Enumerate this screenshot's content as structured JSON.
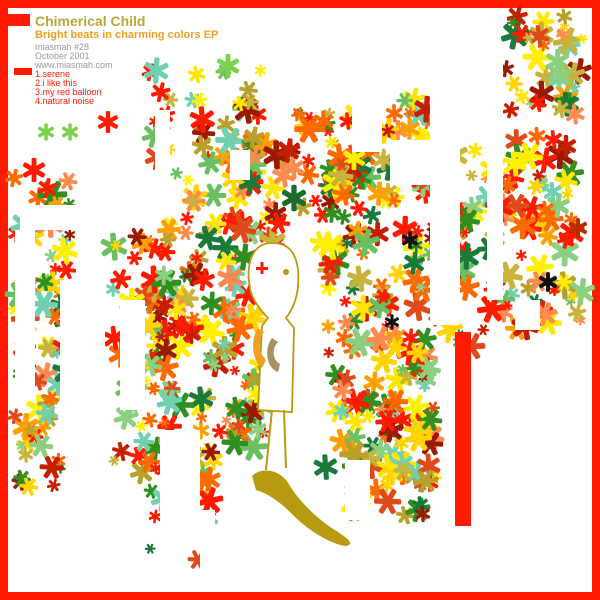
{
  "cover": {
    "artist": "Chimerical Child",
    "title": "Bright beats in charming colors EP",
    "catalog": "miasmah #28",
    "date": "October 2001",
    "url": "www.miasmah.com",
    "tracks": [
      "1.serene",
      "2.i like this",
      "3.my red balloon",
      "4.natural noise"
    ]
  },
  "colors": {
    "frame": "#ff1a00",
    "artist_text": "#b8a83a",
    "subtitle_text": "#f0a020",
    "meta_text": "#9a9a9a",
    "track_text": "#ff1a00",
    "figure": "#b89a10"
  },
  "icons": [
    "asterisk-flower-icon",
    "red-cross-icon"
  ]
}
